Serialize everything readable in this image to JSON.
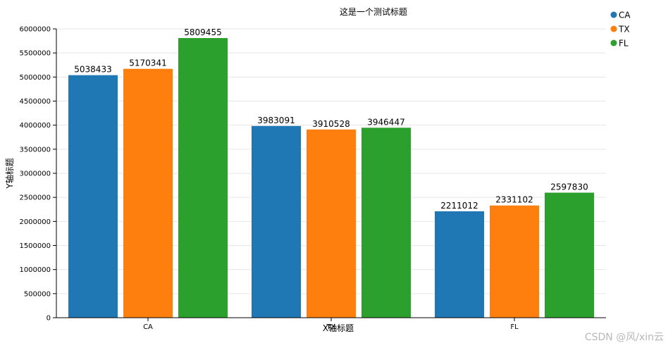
{
  "chart_data": {
    "type": "bar",
    "title": "这是一个测试标题",
    "xlabel": "X轴标题",
    "ylabel": "Y轴标题",
    "categories": [
      "CA",
      "TX",
      "FL"
    ],
    "series": [
      {
        "name": "CA",
        "color": "#1f77b4",
        "values": [
          5038433,
          3983091,
          2211012
        ]
      },
      {
        "name": "TX",
        "color": "#ff7f0e",
        "values": [
          5170341,
          3910528,
          2331102
        ]
      },
      {
        "name": "FL",
        "color": "#2ca02c",
        "values": [
          5809455,
          3946447,
          2597830
        ]
      }
    ],
    "ylim": [
      0,
      6000000
    ],
    "yticks": [
      0,
      500000,
      1000000,
      1500000,
      2000000,
      2500000,
      3000000,
      3500000,
      4000000,
      4500000,
      5000000,
      5500000,
      6000000
    ],
    "grid": true,
    "legend_position": "top-right"
  },
  "watermark": "CSDN @风/xin云"
}
